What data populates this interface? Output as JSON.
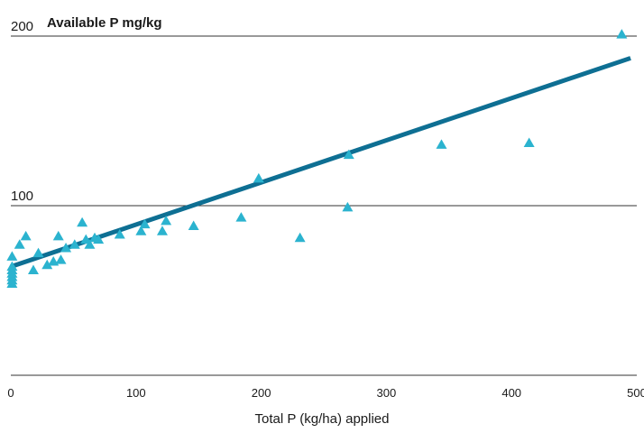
{
  "chart_data": {
    "type": "scatter",
    "title": "",
    "ylabel": "Available P mg/kg",
    "xlabel": "Total P (kg/ha) applied",
    "xlim": [
      0,
      500
    ],
    "ylim": [
      0,
      200
    ],
    "x_ticks": [
      "0",
      "100",
      "200",
      "300",
      "400",
      "500"
    ],
    "y_ticks": [
      "100",
      "200"
    ],
    "grid": "horizontal",
    "legend": "none",
    "series": [
      {
        "marker": "triangle",
        "color": "#2bb3cf",
        "points": [
          [
            1,
            54
          ],
          [
            1,
            56
          ],
          [
            1,
            58
          ],
          [
            1,
            60
          ],
          [
            1,
            62
          ],
          [
            1,
            64
          ],
          [
            1,
            70
          ],
          [
            7,
            77
          ],
          [
            12,
            82
          ],
          [
            18,
            62
          ],
          [
            22,
            72
          ],
          [
            29,
            65
          ],
          [
            34,
            67
          ],
          [
            38,
            82
          ],
          [
            40,
            68
          ],
          [
            44,
            75
          ],
          [
            51,
            77
          ],
          [
            57,
            90
          ],
          [
            60,
            80
          ],
          [
            63,
            77
          ],
          [
            67,
            81
          ],
          [
            70,
            80
          ],
          [
            87,
            83
          ],
          [
            104,
            85
          ],
          [
            107,
            89
          ],
          [
            121,
            85
          ],
          [
            124,
            91
          ],
          [
            146,
            88
          ],
          [
            184,
            93
          ],
          [
            198,
            116
          ],
          [
            231,
            81
          ],
          [
            269,
            99
          ],
          [
            270,
            130
          ],
          [
            344,
            136
          ],
          [
            414,
            137
          ],
          [
            488,
            201
          ]
        ]
      }
    ],
    "trendline": {
      "color": "#0e6f93",
      "points": [
        [
          0,
          64
        ],
        [
          495,
          187
        ]
      ]
    }
  }
}
